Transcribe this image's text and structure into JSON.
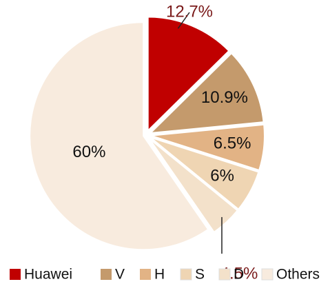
{
  "chart_data": {
    "type": "pie",
    "categories": [
      "Huawei",
      "V",
      "H",
      "S",
      "D",
      "Others"
    ],
    "values": [
      12.7,
      10.9,
      6.5,
      6,
      4.5,
      60
    ],
    "value_labels": [
      "12.7%",
      "10.9%",
      "6.5%",
      "6%",
      "4.5%",
      "60%"
    ],
    "colors": [
      "#c00000",
      "#c49a6c",
      "#e2b385",
      "#efd5b3",
      "#f3e1ca",
      "#f8ebde"
    ],
    "legend": "bottom"
  }
}
